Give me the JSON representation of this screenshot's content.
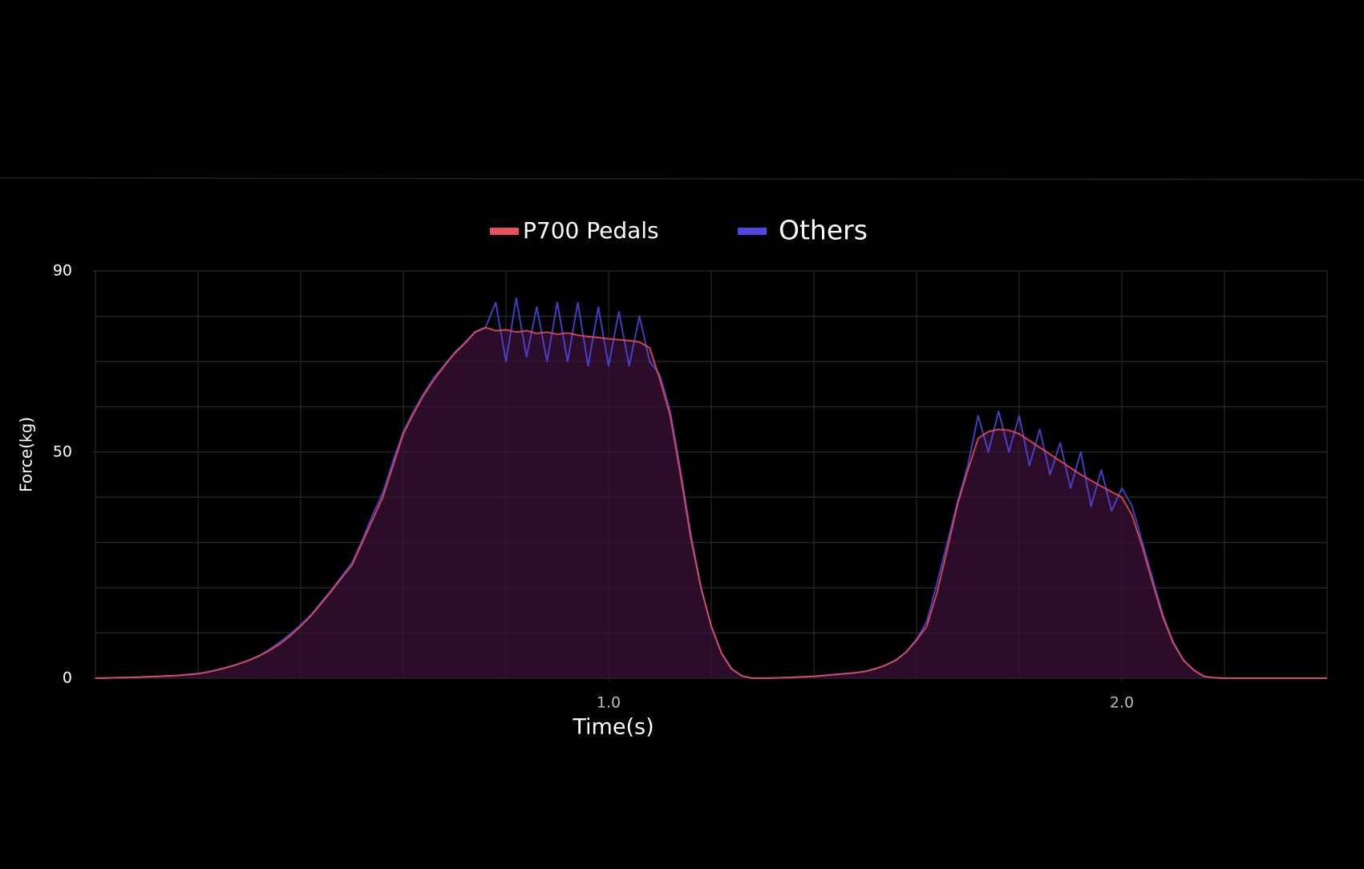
{
  "chart_data": {
    "type": "line",
    "y_label": "Force(kg)",
    "x_label": "Time(s)",
    "xlim": [
      0,
      2.4
    ],
    "ylim": [
      0,
      90
    ],
    "xticks": [
      {
        "value": 1,
        "label": "1.0"
      },
      {
        "value": 2,
        "label": "2.0"
      }
    ],
    "yticks": [
      0,
      50,
      90
    ],
    "grid": true,
    "xgrid": [
      0,
      0.2,
      0.4,
      0.6,
      0.8,
      1,
      1.2,
      1.4,
      1.6,
      1.8,
      2,
      2.2,
      2.4
    ],
    "ygrid": [
      0,
      10,
      20,
      30,
      40,
      50,
      60,
      70,
      80,
      90
    ],
    "legend": "top",
    "fill": "#3a1238",
    "x": [
      0,
      0.02,
      0.04,
      0.06,
      0.08,
      0.1,
      0.12,
      0.14,
      0.16,
      0.18,
      0.2,
      0.22,
      0.24,
      0.26,
      0.28,
      0.3,
      0.32,
      0.34,
      0.36,
      0.38,
      0.4,
      0.42,
      0.44,
      0.46,
      0.48,
      0.5,
      0.52,
      0.54,
      0.56,
      0.58,
      0.6,
      0.62,
      0.64,
      0.66,
      0.68,
      0.7,
      0.72,
      0.74,
      0.76,
      0.78,
      0.8,
      0.82,
      0.84,
      0.86,
      0.88,
      0.9,
      0.92,
      0.94,
      0.96,
      0.98,
      1,
      1.02,
      1.04,
      1.06,
      1.08,
      1.1,
      1.12,
      1.14,
      1.16,
      1.18,
      1.2,
      1.22,
      1.24,
      1.26,
      1.28,
      1.3,
      1.32,
      1.34,
      1.36,
      1.38,
      1.4,
      1.42,
      1.44,
      1.46,
      1.48,
      1.5,
      1.52,
      1.54,
      1.56,
      1.58,
      1.6,
      1.62,
      1.64,
      1.66,
      1.68,
      1.7,
      1.72,
      1.74,
      1.76,
      1.78,
      1.8,
      1.82,
      1.84,
      1.86,
      1.88,
      1.9,
      1.92,
      1.94,
      1.96,
      1.98,
      2,
      2.02,
      2.04,
      2.06,
      2.08,
      2.1,
      2.12,
      2.14,
      2.16,
      2.18,
      2.2,
      2.22,
      2.24,
      2.26,
      2.28,
      2.3,
      2.32,
      2.34,
      2.36,
      2.38,
      2.4
    ],
    "series": [
      {
        "name": "P700 Pedals",
        "color": "#e8505b",
        "values": [
          0,
          0.05,
          0.1,
          0.15,
          0.2,
          0.3,
          0.4,
          0.5,
          0.6,
          0.8,
          1,
          1.4,
          1.9,
          2.5,
          3.2,
          4,
          5,
          6.2,
          7.6,
          9.4,
          11.5,
          13.8,
          16.5,
          19.3,
          22.2,
          25,
          30,
          35,
          40,
          47,
          54,
          58.5,
          62.6,
          66,
          69,
          71.8,
          74,
          76.5,
          77.5,
          76.8,
          77,
          76.5,
          76.8,
          76.2,
          76.5,
          76,
          76.3,
          75.8,
          75.5,
          75.3,
          75,
          74.8,
          74.6,
          74.3,
          73,
          66,
          58,
          45,
          31,
          20,
          11.5,
          5.5,
          2,
          0.5,
          0,
          0,
          0.05,
          0.1,
          0.2,
          0.3,
          0.4,
          0.6,
          0.8,
          1,
          1.2,
          1.5,
          2.1,
          2.9,
          4,
          5.8,
          8.4,
          11.5,
          19,
          28.5,
          38.5,
          46,
          53,
          54.5,
          55,
          54.8,
          54,
          52.5,
          51,
          49.5,
          48,
          46.5,
          45,
          43.7,
          42.4,
          41.2,
          40,
          36,
          29,
          21,
          13.5,
          7.8,
          4,
          1.8,
          0.4,
          0.1,
          0,
          0,
          0,
          0,
          0,
          0,
          0,
          0,
          0,
          0,
          0
        ]
      },
      {
        "name": "Others",
        "color": "#5048e0",
        "values": [
          0,
          0.05,
          0.1,
          0.15,
          0.2,
          0.3,
          0.4,
          0.5,
          0.6,
          0.8,
          1,
          1.4,
          1.9,
          2.5,
          3.2,
          4,
          5,
          6.4,
          8,
          9.8,
          11.8,
          14,
          16.8,
          19.5,
          22.5,
          25.5,
          30.5,
          36,
          41,
          48,
          54.5,
          59,
          63,
          66.5,
          69.2,
          72,
          74.2,
          76.6,
          77.5,
          83,
          70,
          84,
          71,
          82,
          70,
          83,
          70,
          83,
          69,
          82,
          69,
          81,
          69,
          80,
          70,
          67,
          59,
          46,
          32,
          20,
          11.5,
          5.5,
          2,
          0.5,
          0,
          0,
          0.05,
          0.1,
          0.2,
          0.3,
          0.4,
          0.6,
          0.8,
          1,
          1.2,
          1.5,
          2.1,
          2.9,
          4,
          5.8,
          8.6,
          12.5,
          21,
          30,
          39,
          47,
          58,
          50,
          59,
          50,
          58,
          47,
          55,
          45,
          52,
          42,
          50,
          38,
          46,
          37,
          42,
          38,
          30,
          22,
          14,
          8,
          4,
          1.8,
          0.4,
          0.1,
          0,
          0,
          0,
          0,
          0,
          0,
          0,
          0,
          0,
          0,
          0
        ]
      }
    ]
  }
}
